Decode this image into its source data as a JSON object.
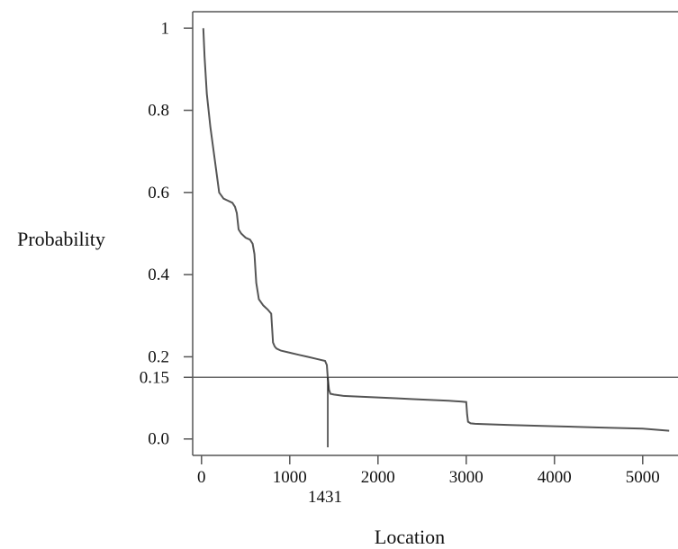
{
  "chart_data": {
    "type": "line",
    "xlabel": "Location",
    "ylabel": "Probability",
    "xlim": [
      -100,
      5400
    ],
    "ylim": [
      -0.04,
      1.04
    ],
    "xticks": [
      0,
      1000,
      2000,
      3000,
      4000,
      5000
    ],
    "xtick_labels": [
      "0",
      "1000",
      "2000",
      "3000",
      "4000",
      "5000"
    ],
    "yticks": [
      0.0,
      0.15,
      0.2,
      0.4,
      0.6,
      0.8,
      1.0
    ],
    "ytick_labels": [
      "0.0",
      "0.15",
      "0.2",
      "0.4",
      "0.6",
      "0.8",
      "1"
    ],
    "threshold": {
      "y": 0.15,
      "label": "0.15"
    },
    "marker": {
      "x": 1431,
      "label": "1431"
    },
    "grid": false,
    "series": [
      {
        "x": [
          20,
          35,
          60,
          100,
          150,
          200,
          250,
          300,
          350,
          380,
          400,
          420,
          450,
          500,
          550,
          580,
          600,
          620,
          650,
          700,
          750,
          790,
          800,
          810,
          830,
          850,
          900,
          1000,
          1100,
          1200,
          1300,
          1400,
          1420,
          1431,
          1445,
          1460,
          1500,
          1600,
          1800,
          2000,
          2200,
          2400,
          2600,
          2800,
          2950,
          3000,
          3010,
          3020,
          3050,
          3100,
          3200,
          3500,
          4000,
          4500,
          5000,
          5300
        ],
        "y": [
          1.0,
          0.93,
          0.84,
          0.76,
          0.68,
          0.6,
          0.585,
          0.58,
          0.575,
          0.565,
          0.55,
          0.51,
          0.5,
          0.49,
          0.485,
          0.475,
          0.45,
          0.38,
          0.34,
          0.325,
          0.315,
          0.305,
          0.27,
          0.235,
          0.225,
          0.22,
          0.215,
          0.21,
          0.205,
          0.2,
          0.195,
          0.19,
          0.18,
          0.15,
          0.12,
          0.11,
          0.108,
          0.105,
          0.103,
          0.101,
          0.099,
          0.097,
          0.095,
          0.093,
          0.091,
          0.09,
          0.06,
          0.042,
          0.038,
          0.037,
          0.036,
          0.034,
          0.031,
          0.028,
          0.025,
          0.02
        ]
      }
    ]
  }
}
